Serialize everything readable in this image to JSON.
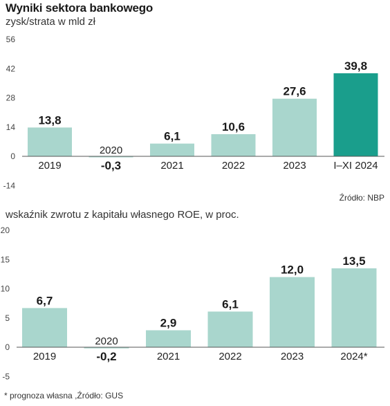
{
  "header": {
    "title": "Wyniki sektora bankowego",
    "subtitle1": "zysk/strata w mld zł",
    "source1": "Źródło: NBP",
    "subtitle2": "wskaźnik zwrotu z kapitału własnego ROE, w proc.",
    "footer": "* prognoza własna ,Źródło: GUS"
  },
  "colors": {
    "bar": "#a9d6cd",
    "highlight": "#1a9e8c",
    "axis": "#555555"
  },
  "chart_data": [
    {
      "type": "bar",
      "categories": [
        "2019",
        "2020",
        "2021",
        "2022",
        "2023",
        "I–XI 2024"
      ],
      "values": [
        13.8,
        -0.3,
        6.1,
        10.6,
        27.6,
        39.8
      ],
      "value_labels": [
        "13,8",
        "-0,3",
        "6,1",
        "10,6",
        "27,6",
        "39,8"
      ],
      "yticks": [
        "56",
        "42",
        "28",
        "14",
        "0",
        "-14"
      ],
      "ylim": [
        -14,
        56
      ],
      "highlight_index": 5
    },
    {
      "type": "bar",
      "categories": [
        "2019",
        "2020",
        "2021",
        "2022",
        "2023",
        "2024*"
      ],
      "values": [
        6.7,
        -0.2,
        2.9,
        6.1,
        12.0,
        13.5
      ],
      "value_labels": [
        "6,7",
        "-0,2",
        "2,9",
        "6,1",
        "12,0",
        "13,5"
      ],
      "yticks": [
        "20",
        "15",
        "10",
        "5",
        "0",
        "-5"
      ],
      "ylim": [
        -5,
        20
      ],
      "highlight_index": -1
    }
  ]
}
